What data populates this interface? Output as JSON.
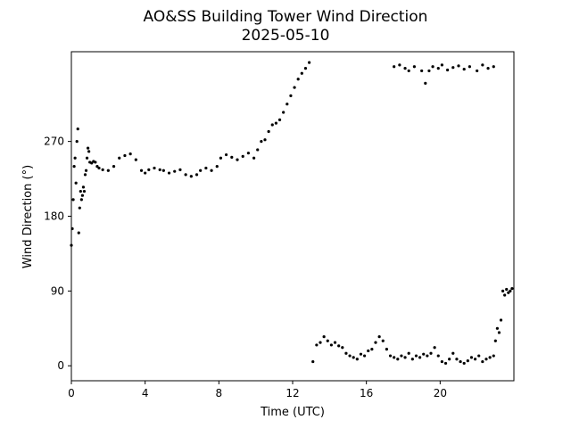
{
  "chart_data": {
    "type": "scatter",
    "title": "AO&SS Building Tower Wind Direction",
    "subtitle": "2025-05-10",
    "xlabel": "Time (UTC)",
    "ylabel": "Wind Direction (°)",
    "xlim": [
      0,
      24
    ],
    "ylim": [
      -18,
      378
    ],
    "xticks": [
      0,
      4,
      8,
      12,
      16,
      20
    ],
    "yticks": [
      0,
      90,
      180,
      270
    ],
    "grid": false,
    "legend": "none",
    "marker_color": "#000000",
    "series": [
      {
        "x": [
          0.0,
          0.05,
          0.1,
          0.15,
          0.2,
          0.25,
          0.3,
          0.35,
          0.4,
          0.45,
          0.5,
          0.55,
          0.6,
          0.65,
          0.7,
          0.75,
          0.8,
          0.85,
          0.9,
          0.95,
          1.0,
          1.1,
          1.2,
          1.3,
          1.4,
          1.5,
          1.7,
          2.0,
          2.3,
          2.6,
          2.9,
          3.2,
          3.5,
          3.8,
          4.0,
          4.2,
          4.5,
          4.8,
          5.0,
          5.3,
          5.6,
          5.9,
          6.2,
          6.5,
          6.8,
          7.0,
          7.3,
          7.6,
          7.9,
          8.1,
          8.4,
          8.7,
          9.0,
          9.3,
          9.6,
          9.9,
          10.1,
          10.3,
          10.5,
          10.7,
          10.9,
          11.1,
          11.3,
          11.5,
          11.7,
          11.9,
          12.1,
          12.3,
          12.5,
          12.7,
          12.9,
          13.1,
          13.3,
          13.5,
          13.7,
          13.9,
          14.1,
          14.3,
          14.5,
          14.7,
          14.9,
          15.1,
          15.3,
          15.5,
          15.7,
          15.9,
          16.1,
          16.3,
          16.5,
          16.7,
          16.9,
          17.1,
          17.3,
          17.5,
          17.7,
          17.9,
          18.1,
          18.3,
          18.5,
          18.7,
          18.9,
          19.1,
          19.3,
          19.5,
          19.7,
          19.9,
          20.1,
          20.3,
          20.5,
          20.7,
          20.9,
          21.1,
          21.3,
          21.5,
          21.7,
          21.9,
          22.1,
          22.3,
          22.5,
          22.7,
          22.9,
          23.0,
          23.1,
          23.2,
          23.3,
          23.4,
          23.5,
          23.6,
          23.7,
          23.8,
          23.9,
          17.5,
          17.8,
          18.1,
          18.3,
          18.6,
          19.0,
          19.2,
          19.4,
          19.6,
          19.9,
          20.1,
          20.4,
          20.7,
          21.0,
          21.3,
          21.6,
          22.0,
          22.3,
          22.6,
          22.9
        ],
        "y": [
          145,
          165,
          200,
          240,
          250,
          220,
          270,
          285,
          160,
          190,
          210,
          200,
          205,
          215,
          210,
          230,
          235,
          250,
          262,
          258,
          245,
          244,
          246,
          245,
          240,
          238,
          236,
          235,
          240,
          250,
          253,
          255,
          248,
          235,
          232,
          236,
          238,
          236,
          235,
          232,
          234,
          236,
          230,
          228,
          230,
          235,
          238,
          235,
          240,
          250,
          254,
          251,
          248,
          252,
          256,
          250,
          260,
          270,
          272,
          282,
          290,
          292,
          296,
          305,
          315,
          325,
          335,
          345,
          352,
          358,
          365,
          5,
          25,
          28,
          35,
          30,
          25,
          28,
          24,
          22,
          15,
          12,
          10,
          8,
          14,
          12,
          18,
          20,
          28,
          35,
          30,
          20,
          12,
          10,
          8,
          12,
          10,
          15,
          8,
          12,
          10,
          14,
          12,
          15,
          22,
          12,
          5,
          3,
          8,
          15,
          8,
          5,
          3,
          6,
          10,
          8,
          12,
          5,
          8,
          10,
          12,
          30,
          45,
          40,
          55,
          90,
          85,
          92,
          88,
          90,
          93,
          360,
          362,
          358,
          355,
          360,
          355,
          340,
          355,
          360,
          358,
          362,
          356,
          359,
          361,
          357,
          360,
          355,
          362,
          358,
          360
        ]
      }
    ]
  }
}
